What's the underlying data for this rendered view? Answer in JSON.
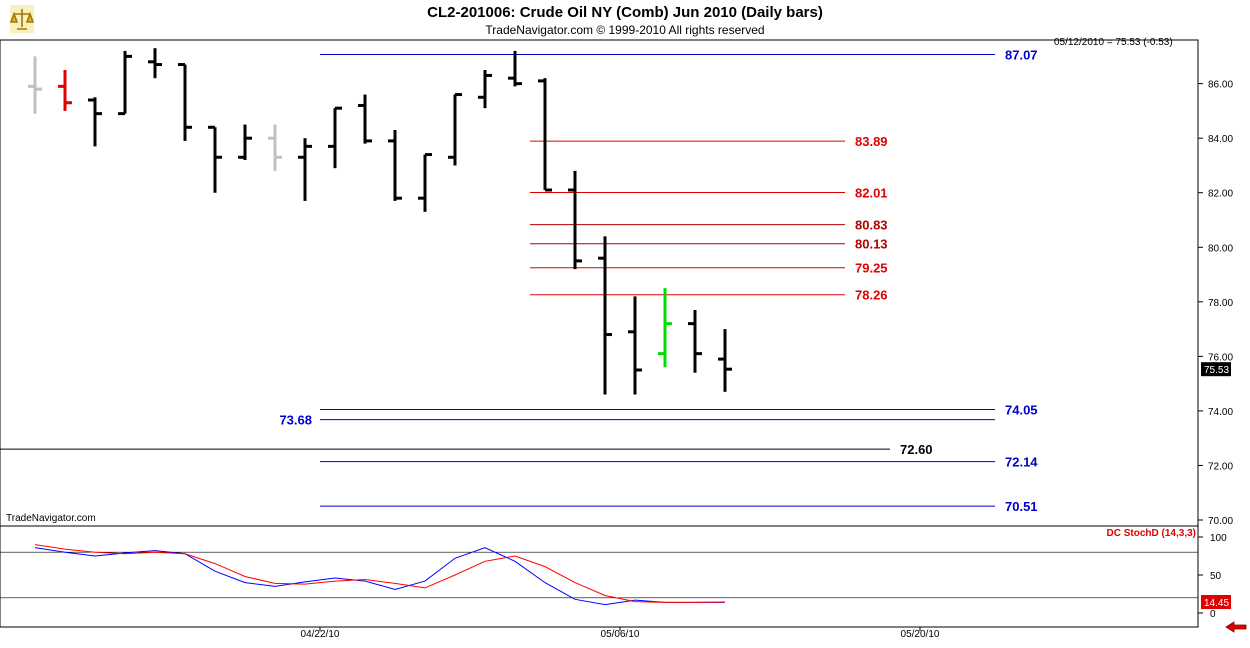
{
  "header": {
    "title": "CL2-201006:  Crude Oil NY (Comb) Jun 2010  (Daily bars)",
    "subtitle": "TradeNavigator.com © 1999-2010 All rights reserved",
    "readout": "05/12/2010 = 75.53 (-0.53)",
    "watermark": "TradeNavigator.com",
    "logo_icon": "scales-icon",
    "nav_icon": "left-arrow-icon"
  },
  "colors": {
    "bar": "#000000",
    "bar_faded": "#c0c0c0",
    "bar_red": "#e00000",
    "bar_green": "#00dd00",
    "level_red": "#e00000",
    "level_darkred": "#b00000",
    "level_blue": "#0000cc",
    "k_line": "#0000ff",
    "d_line": "#ff0000"
  },
  "chart_data": [
    {
      "type": "ohlc",
      "ylim": [
        70,
        87.6
      ],
      "y_ticks": [
        "70.00",
        "72.00",
        "74.00",
        "76.00",
        "78.00",
        "80.00",
        "82.00",
        "84.00",
        "86.00"
      ],
      "x_tick_labels": [
        "04/22/10",
        "05/06/10",
        "05/20/10"
      ],
      "last_price": "75.53",
      "bars": [
        {
          "o": 85.9,
          "h": 87.0,
          "l": 84.9,
          "c": 85.8,
          "color": "faded"
        },
        {
          "o": 85.9,
          "h": 86.5,
          "l": 85.0,
          "c": 85.3,
          "color": "red"
        },
        {
          "o": 85.4,
          "h": 85.5,
          "l": 83.7,
          "c": 84.9
        },
        {
          "o": 84.9,
          "h": 87.2,
          "l": 84.9,
          "c": 87.0
        },
        {
          "o": 86.8,
          "h": 87.3,
          "l": 86.2,
          "c": 86.7
        },
        {
          "o": 86.7,
          "h": 86.7,
          "l": 83.9,
          "c": 84.4
        },
        {
          "o": 84.4,
          "h": 84.4,
          "l": 82.0,
          "c": 83.3
        },
        {
          "o": 83.3,
          "h": 84.5,
          "l": 83.2,
          "c": 84.0
        },
        {
          "o": 84.0,
          "h": 84.5,
          "l": 82.8,
          "c": 83.3,
          "color": "faded"
        },
        {
          "o": 83.3,
          "h": 84.0,
          "l": 81.7,
          "c": 83.7
        },
        {
          "o": 83.7,
          "h": 85.1,
          "l": 82.9,
          "c": 85.1
        },
        {
          "o": 85.2,
          "h": 85.6,
          "l": 83.8,
          "c": 83.9
        },
        {
          "o": 83.9,
          "h": 84.3,
          "l": 81.7,
          "c": 81.8
        },
        {
          "o": 81.8,
          "h": 83.4,
          "l": 81.3,
          "c": 83.4
        },
        {
          "o": 83.3,
          "h": 85.6,
          "l": 83.0,
          "c": 85.6
        },
        {
          "o": 85.5,
          "h": 86.5,
          "l": 85.1,
          "c": 86.3
        },
        {
          "o": 86.2,
          "h": 87.2,
          "l": 85.9,
          "c": 86.0
        },
        {
          "o": 86.1,
          "h": 86.2,
          "l": 82.1,
          "c": 82.1
        },
        {
          "o": 82.1,
          "h": 82.8,
          "l": 79.2,
          "c": 79.5
        },
        {
          "o": 79.6,
          "h": 80.4,
          "l": 74.6,
          "c": 76.8
        },
        {
          "o": 76.9,
          "h": 78.2,
          "l": 74.6,
          "c": 75.5
        },
        {
          "o": 76.1,
          "h": 78.5,
          "l": 75.6,
          "c": 77.2,
          "color": "green"
        },
        {
          "o": 77.2,
          "h": 77.7,
          "l": 75.4,
          "c": 76.1
        },
        {
          "o": 75.9,
          "h": 77.0,
          "l": 74.7,
          "c": 75.53
        }
      ],
      "levels": [
        {
          "value": 87.07,
          "label": "87.07",
          "color": "blue",
          "x0": 9.5,
          "x1": 32,
          "label_pos": "right"
        },
        {
          "value": 83.89,
          "label": "83.89",
          "color": "red",
          "x0": 16.5,
          "x1": 27,
          "label_pos": "right"
        },
        {
          "value": 82.01,
          "label": "82.01",
          "color": "red",
          "x0": 16.5,
          "x1": 27,
          "label_pos": "right"
        },
        {
          "value": 80.83,
          "label": "80.83",
          "color": "darkred",
          "x0": 16.5,
          "x1": 27,
          "label_pos": "right"
        },
        {
          "value": 80.13,
          "label": "80.13",
          "color": "darkred",
          "x0": 16.5,
          "x1": 27,
          "label_pos": "right"
        },
        {
          "value": 79.25,
          "label": "79.25",
          "color": "red",
          "x0": 16.5,
          "x1": 27,
          "label_pos": "right"
        },
        {
          "value": 78.26,
          "label": "78.26",
          "color": "red",
          "x0": 16.5,
          "x1": 27,
          "label_pos": "right"
        },
        {
          "value": 74.05,
          "label": "74.05",
          "color": "blue",
          "x0": 9.5,
          "x1": 32,
          "label_pos": "right"
        },
        {
          "value": 73.68,
          "label": "73.68",
          "color": "blue",
          "x0": 9.5,
          "x1": 32,
          "label_pos": "left"
        },
        {
          "value": 72.6,
          "label": "72.60",
          "color": "black",
          "x0": -2,
          "x1": 28.5,
          "label_pos": "right"
        },
        {
          "value": 72.14,
          "label": "72.14",
          "color": "blue",
          "x0": 9.5,
          "x1": 32,
          "label_pos": "right"
        },
        {
          "value": 70.51,
          "label": "70.51",
          "color": "blue",
          "x0": 9.5,
          "x1": 32,
          "label_pos": "right"
        }
      ]
    },
    {
      "type": "line",
      "title": "DC StochD (14,3,3)",
      "ylim": [
        0,
        100
      ],
      "y_ticks": [
        "0",
        "50",
        "100"
      ],
      "reference_lines": [
        80,
        20
      ],
      "last_value": "14.45",
      "series": [
        {
          "color": "blue",
          "values": [
            86,
            80,
            75,
            79,
            82,
            78,
            55,
            40,
            35,
            41,
            46,
            42,
            31,
            42,
            72,
            86,
            68,
            40,
            18,
            11,
            17,
            14,
            14,
            14
          ]
        },
        {
          "color": "red",
          "values": [
            90,
            84,
            80,
            78,
            80,
            78,
            65,
            48,
            39,
            38,
            42,
            44,
            39,
            33,
            50,
            68,
            75,
            61,
            40,
            23,
            15,
            14,
            14,
            14.45
          ]
        }
      ]
    }
  ]
}
